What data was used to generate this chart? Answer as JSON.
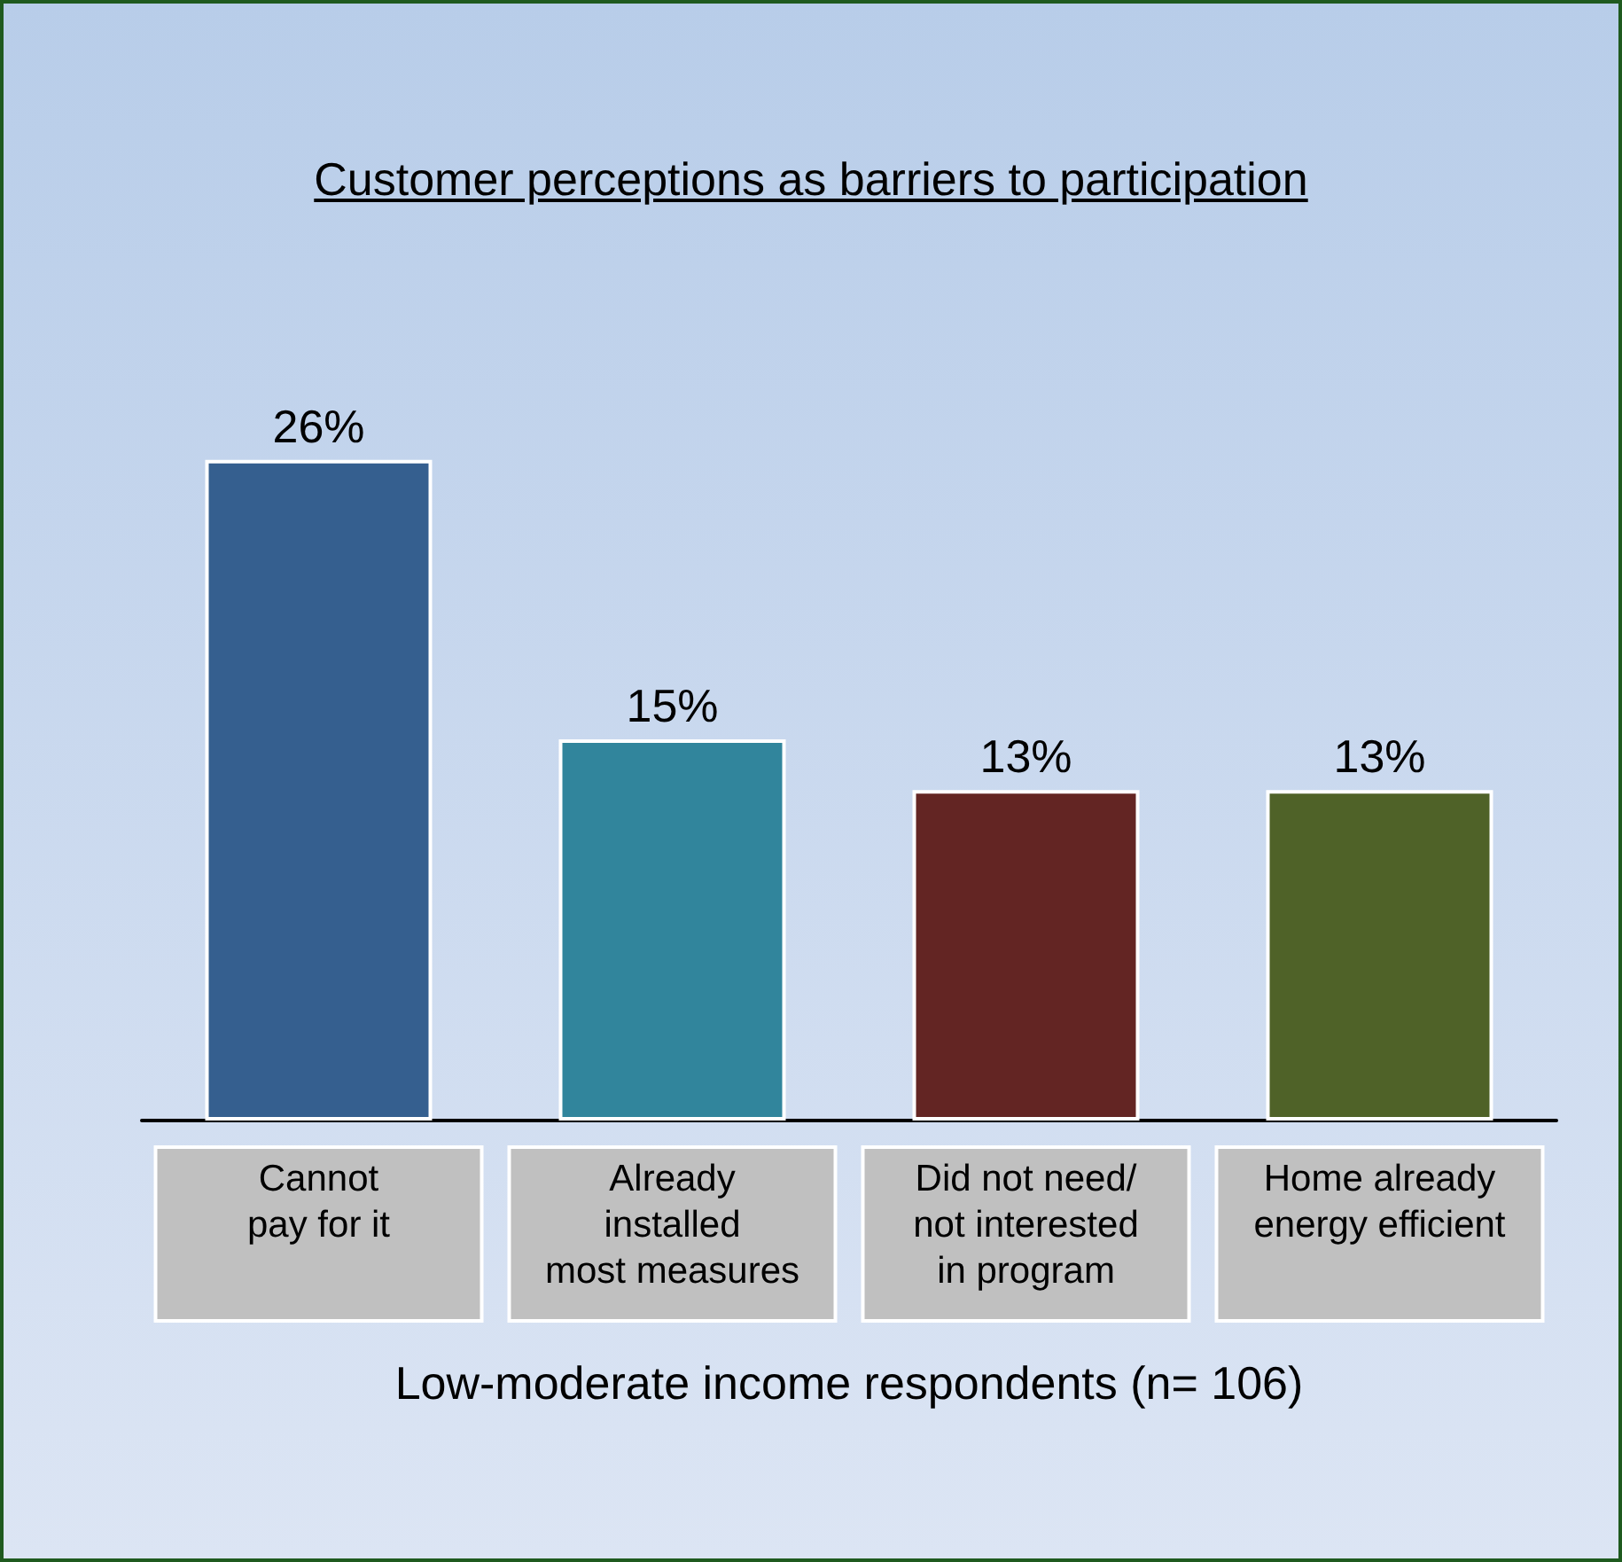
{
  "chart_data": {
    "type": "bar",
    "title": "Customer perceptions as barriers to participation",
    "xlabel": "Low-moderate income respondents (n= 106)",
    "categories": [
      "Cannot\npay for it",
      "Already\ninstalled\nmost measures",
      "Did not need/\nnot interested\nin program",
      "Home already\nenergy efficient"
    ],
    "values": [
      26,
      15,
      13,
      13
    ],
    "colors": [
      "#355f8f",
      "#31859c",
      "#632523",
      "#4f6228"
    ],
    "value_labels": [
      "26%",
      "15%",
      "13%",
      "13%"
    ],
    "grid": false
  }
}
